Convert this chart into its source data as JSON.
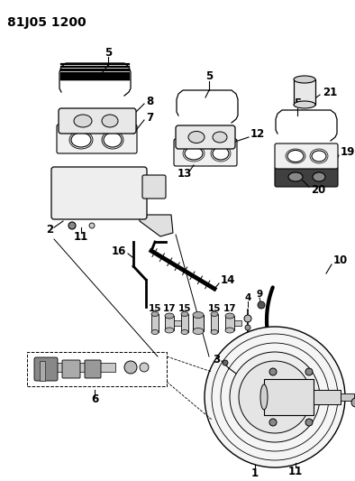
{
  "title": "81J05 1200",
  "background_color": "#ffffff",
  "line_color": "#000000",
  "title_fontsize": 10,
  "label_fontsize": 7.5,
  "figsize": [
    3.94,
    5.33
  ],
  "dpi": 100
}
